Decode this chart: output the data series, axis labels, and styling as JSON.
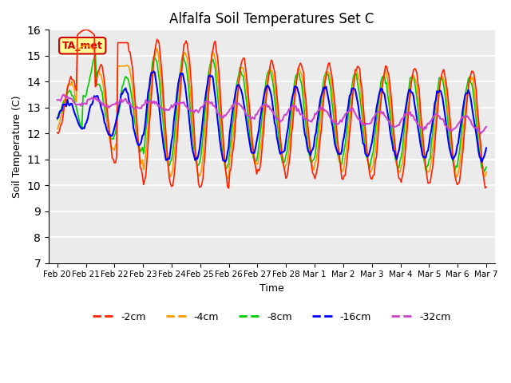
{
  "title": "Alfalfa Soil Temperatures Set C",
  "xlabel": "Time",
  "ylabel": "Soil Temperature (C)",
  "ylim": [
    7.0,
    16.0
  ],
  "yticks": [
    7.0,
    8.0,
    9.0,
    10.0,
    11.0,
    12.0,
    13.0,
    14.0,
    15.0,
    16.0
  ],
  "xtick_labels": [
    "Feb 20",
    "Feb 21",
    "Feb 22",
    "Feb 23",
    "Feb 24",
    "Feb 25",
    "Feb 26",
    "Feb 27",
    "Feb 28",
    "Mar 1",
    "Mar 2",
    "Mar 3",
    "Mar 4",
    "Mar 5",
    "Mar 6",
    "Mar 7"
  ],
  "annotation_text": "TA_met",
  "annotation_color": "#cc0000",
  "annotation_bg": "#ffff99",
  "colors": {
    "-2cm": "#ff2200",
    "-4cm": "#ff9900",
    "-8cm": "#00cc00",
    "-16cm": "#0000ff",
    "-32cm": "#cc44cc"
  },
  "legend_labels": [
    "-2cm",
    "-4cm",
    "-8cm",
    "-16cm",
    "-32cm"
  ],
  "plot_bg": "#ebebeb"
}
